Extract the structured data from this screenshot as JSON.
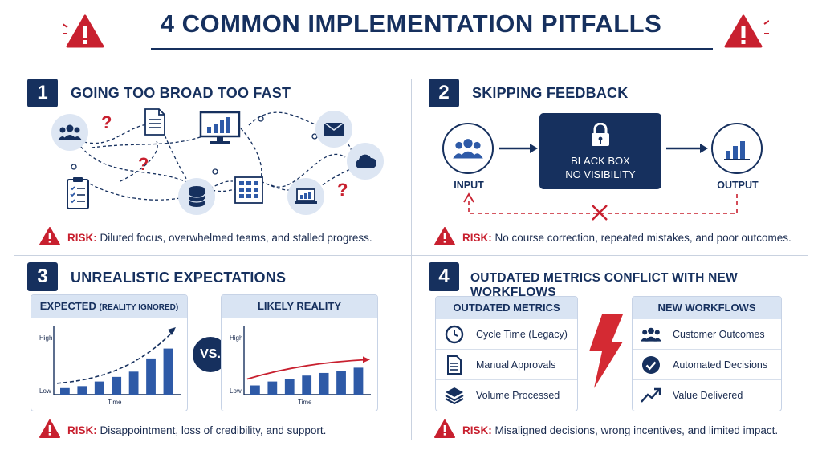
{
  "title": "4 COMMON IMPLEMENTATION PITFALLS",
  "colors": {
    "navy": "#16305e",
    "red": "#c8202f",
    "blue": "#2e5aa7",
    "light_blue": "#dde6f3"
  },
  "sections": [
    {
      "number": "1",
      "title": "GOING TOO BROAD TOO FAST",
      "risk_label": "RISK:",
      "risk_text": "Diluted focus, overwhelmed teams, and stalled progress.",
      "icons": [
        "team-icon",
        "document-icon",
        "monitor-chart-icon",
        "mail-icon",
        "cloud-icon",
        "checklist-icon",
        "database-icon",
        "grid-icon",
        "laptop-chart-icon"
      ],
      "question_marks": [
        "?",
        "?",
        "?"
      ]
    },
    {
      "number": "2",
      "title": "SKIPPING FEEDBACK",
      "risk_label": "RISK:",
      "risk_text": "No course correction, repeated mistakes, and poor outcomes.",
      "input_label": "INPUT",
      "output_label": "OUTPUT",
      "box_line1": "BLACK BOX",
      "box_line2": "NO VISIBILITY"
    },
    {
      "number": "3",
      "title": "UNREALISTIC EXPECTATIONS",
      "risk_label": "RISK:",
      "risk_text": "Disappointment, loss of credibility, and support.",
      "vs_label": "VS.",
      "expected_title_main": "EXPECTED",
      "expected_title_note": "(REALITY IGNORED)",
      "reality_title": "LIKELY REALITY"
    },
    {
      "number": "4",
      "title": "OUTDATED METRICS CONFLICT WITH NEW WORKFLOWS",
      "risk_label": "RISK:",
      "risk_text": "Misaligned decisions, wrong incentives, and limited impact.",
      "left_header": "OUTDATED METRICS",
      "left_items": [
        {
          "icon": "clock-icon",
          "label": "Cycle Time (Legacy)"
        },
        {
          "icon": "document-icon",
          "label": "Manual Approvals"
        },
        {
          "icon": "layers-icon",
          "label": "Volume Processed"
        }
      ],
      "right_header": "NEW WORKFLOWS",
      "right_items": [
        {
          "icon": "team-icon",
          "label": "Customer Outcomes"
        },
        {
          "icon": "check-circle-icon",
          "label": "Automated Decisions"
        },
        {
          "icon": "trend-up-icon",
          "label": "Value Delivered"
        }
      ]
    }
  ],
  "chart_data": [
    {
      "type": "bar",
      "title": "EXPECTED (REALITY IGNORED)",
      "ylabel_high": "High",
      "ylabel_low": "Low",
      "xlabel": "Time",
      "values": [
        1,
        1.3,
        2,
        2.7,
        3.5,
        5.5,
        7
      ],
      "trend": "dashed curve rising steeply",
      "ylim": [
        0,
        10
      ]
    },
    {
      "type": "bar",
      "title": "LIKELY REALITY",
      "ylabel_high": "High",
      "ylabel_low": "Low",
      "xlabel": "Time",
      "values": [
        1.4,
        2,
        2.4,
        2.9,
        3.3,
        3.6,
        4.1
      ],
      "trend": "solid red line rising gently",
      "ylim": [
        0,
        10
      ]
    }
  ]
}
